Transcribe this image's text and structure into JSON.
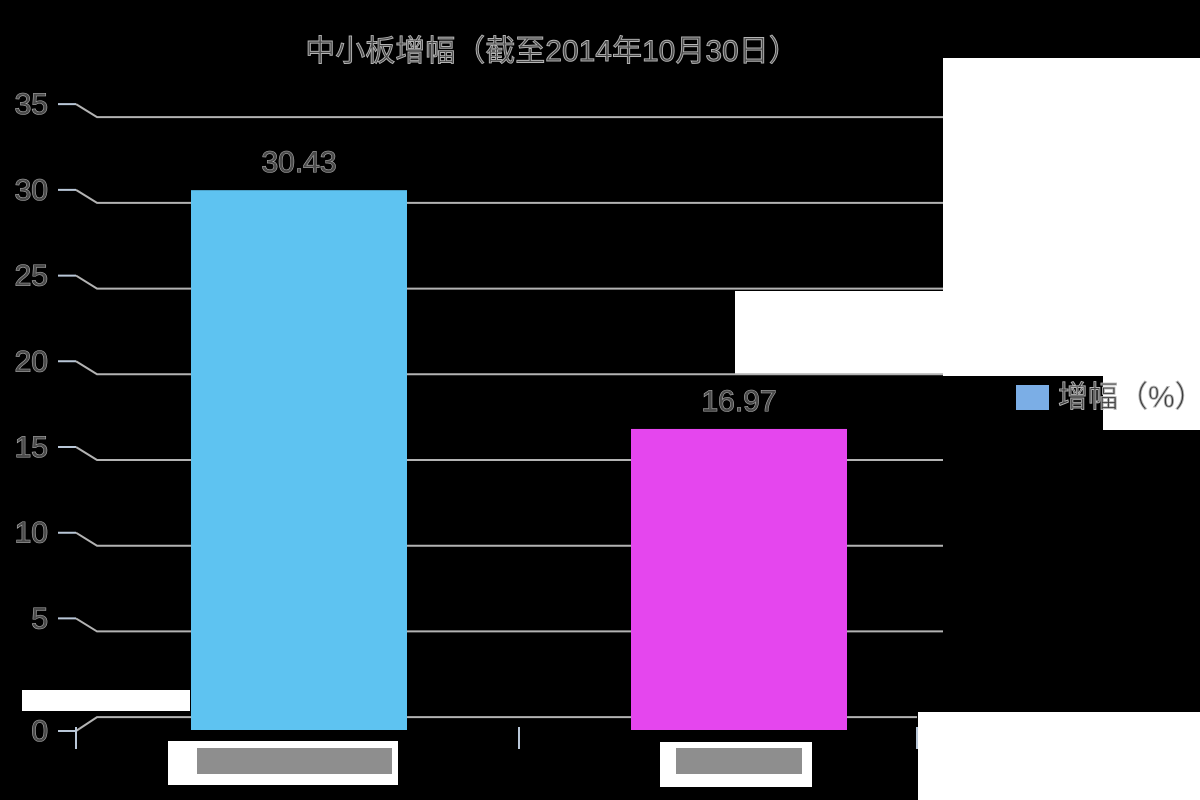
{
  "chart_data": {
    "type": "bar",
    "title": "中小板增幅（截至2014年10月30日）",
    "categories": [
      "",
      ""
    ],
    "category_labels_covered": true,
    "series": [
      {
        "name": "增幅（%）",
        "values": [
          30.43,
          16.97
        ]
      }
    ],
    "value_labels": [
      "30.43",
      "16.97"
    ],
    "y_ticks": [
      0,
      5,
      10,
      15,
      20,
      25,
      30,
      35
    ],
    "y_tick_labels": [
      "0",
      "5",
      "10",
      "15",
      "20",
      "25",
      "30",
      "35"
    ],
    "ylim": [
      0,
      35
    ],
    "grid": true,
    "legend": {
      "label": "增幅（%）",
      "position": "right"
    },
    "bar_colors": [
      "#5ec3f1",
      "#e546ee"
    ],
    "legend_swatch_color": "#7baee6"
  },
  "colors": {
    "background": "#000000",
    "patch": "#ffffff",
    "gridline": "#b3b3b3",
    "axis_tick": "#b9c7d8",
    "text_fill": "#4a4a4a",
    "text_edge": "#b5b5b5",
    "redaction_box": "#8e8e8e"
  }
}
